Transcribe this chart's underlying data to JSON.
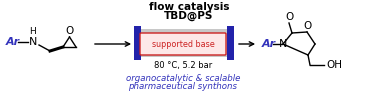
{
  "bg_color": "#ffffff",
  "title_line1": "flow catalysis",
  "title_line2": "TBD@PS",
  "subtitle1": "organocatalytic & scalable",
  "subtitle2": "pharmaceutical synthons",
  "conditions": "80 °C, 5.2 bar",
  "supported_base": "supported base",
  "blue_color": "#3333bb",
  "red_color": "#cc2222",
  "dark_blue": "#2222aa",
  "reactor_fill": "#c8c8c8",
  "text_color": "#000000",
  "arrow_color": "#444444"
}
